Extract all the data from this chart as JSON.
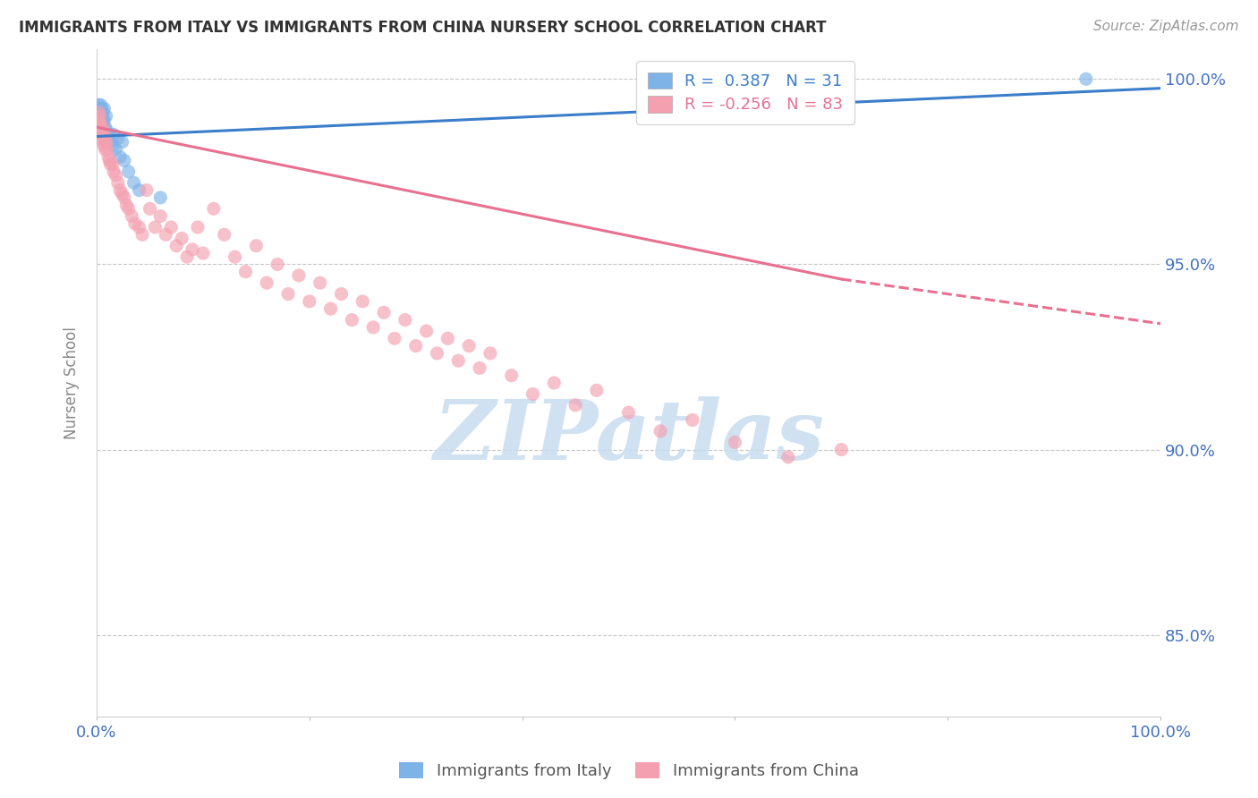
{
  "title": "IMMIGRANTS FROM ITALY VS IMMIGRANTS FROM CHINA NURSERY SCHOOL CORRELATION CHART",
  "source": "Source: ZipAtlas.com",
  "ylabel": "Nursery School",
  "xlim": [
    0.0,
    1.0
  ],
  "ylim": [
    0.828,
    1.008
  ],
  "yticks": [
    1.0,
    0.95,
    0.9,
    0.85
  ],
  "ytick_labels": [
    "100.0%",
    "95.0%",
    "90.0%",
    "85.0%"
  ],
  "xticks": [
    0.0,
    0.2,
    0.4,
    0.6,
    0.8,
    1.0
  ],
  "xtick_labels": [
    "0.0%",
    "",
    "",
    "",
    "",
    "100.0%"
  ],
  "legend_italy": "Immigrants from Italy",
  "legend_china": "Immigrants from China",
  "R_italy": 0.387,
  "N_italy": 31,
  "R_china": -0.256,
  "N_china": 83,
  "color_italy": "#7EB3E8",
  "color_china": "#F4A0B0",
  "color_italy_line": "#3A7DC9",
  "color_china_line": "#E87090",
  "watermark": "ZIPatlas",
  "watermark_color": "#C8DCF0",
  "italy_x": [
    0.001,
    0.002,
    0.003,
    0.003,
    0.004,
    0.004,
    0.004,
    0.005,
    0.005,
    0.005,
    0.006,
    0.006,
    0.007,
    0.007,
    0.008,
    0.009,
    0.01,
    0.012,
    0.013,
    0.015,
    0.016,
    0.018,
    0.02,
    0.022,
    0.024,
    0.026,
    0.03,
    0.035,
    0.04,
    0.06,
    0.93
  ],
  "italy_y": [
    0.988,
    0.993,
    0.99,
    0.992,
    0.987,
    0.991,
    0.993,
    0.989,
    0.992,
    0.99,
    0.988,
    0.991,
    0.989,
    0.992,
    0.987,
    0.99,
    0.986,
    0.985,
    0.983,
    0.982,
    0.985,
    0.981,
    0.984,
    0.979,
    0.983,
    0.978,
    0.975,
    0.972,
    0.97,
    0.968,
    1.0
  ],
  "china_x": [
    0.001,
    0.002,
    0.002,
    0.003,
    0.003,
    0.004,
    0.004,
    0.005,
    0.005,
    0.006,
    0.006,
    0.007,
    0.007,
    0.008,
    0.008,
    0.009,
    0.01,
    0.011,
    0.012,
    0.013,
    0.015,
    0.016,
    0.018,
    0.02,
    0.022,
    0.024,
    0.026,
    0.028,
    0.03,
    0.033,
    0.036,
    0.04,
    0.043,
    0.047,
    0.05,
    0.055,
    0.06,
    0.065,
    0.07,
    0.075,
    0.08,
    0.085,
    0.09,
    0.095,
    0.1,
    0.11,
    0.12,
    0.13,
    0.14,
    0.15,
    0.16,
    0.17,
    0.18,
    0.19,
    0.2,
    0.21,
    0.22,
    0.23,
    0.24,
    0.25,
    0.26,
    0.27,
    0.28,
    0.29,
    0.3,
    0.31,
    0.32,
    0.33,
    0.34,
    0.35,
    0.36,
    0.37,
    0.39,
    0.41,
    0.43,
    0.45,
    0.47,
    0.5,
    0.53,
    0.56,
    0.6,
    0.65,
    0.7
  ],
  "china_y": [
    0.989,
    0.991,
    0.988,
    0.99,
    0.987,
    0.988,
    0.985,
    0.987,
    0.984,
    0.986,
    0.983,
    0.985,
    0.982,
    0.984,
    0.981,
    0.983,
    0.981,
    0.979,
    0.978,
    0.977,
    0.977,
    0.975,
    0.974,
    0.972,
    0.97,
    0.969,
    0.968,
    0.966,
    0.965,
    0.963,
    0.961,
    0.96,
    0.958,
    0.97,
    0.965,
    0.96,
    0.963,
    0.958,
    0.96,
    0.955,
    0.957,
    0.952,
    0.954,
    0.96,
    0.953,
    0.965,
    0.958,
    0.952,
    0.948,
    0.955,
    0.945,
    0.95,
    0.942,
    0.947,
    0.94,
    0.945,
    0.938,
    0.942,
    0.935,
    0.94,
    0.933,
    0.937,
    0.93,
    0.935,
    0.928,
    0.932,
    0.926,
    0.93,
    0.924,
    0.928,
    0.922,
    0.926,
    0.92,
    0.915,
    0.918,
    0.912,
    0.916,
    0.91,
    0.905,
    0.908,
    0.902,
    0.898,
    0.9
  ],
  "italy_trendline_x": [
    0.0,
    1.0
  ],
  "italy_trendline_y": [
    0.9845,
    0.9975
  ],
  "china_trendline_x0": 0.0,
  "china_trendline_x_solid_end": 0.7,
  "china_trendline_x1": 1.0,
  "china_trendline_y0": 0.987,
  "china_trendline_y_solid_end": 0.946,
  "china_trendline_y1": 0.934
}
